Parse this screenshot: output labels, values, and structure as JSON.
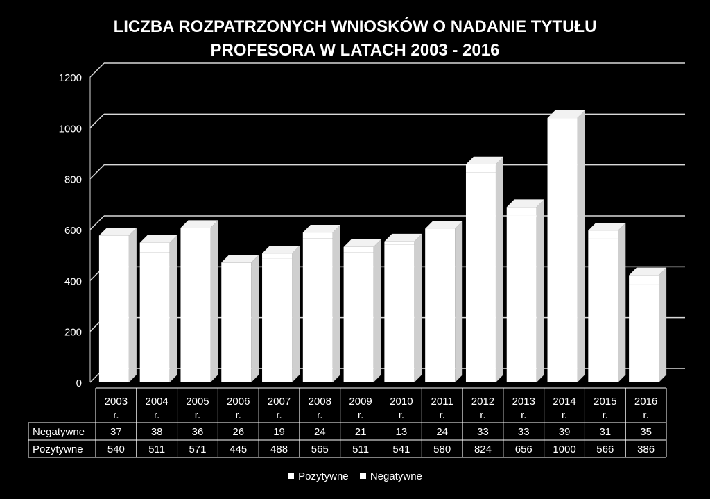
{
  "chart_data": {
    "type": "bar",
    "title_line1": "LICZBA ROZPATRZONYCH WNIOSKÓW O NADANIE TYTUŁU",
    "title_line2": "PROFESORA W LATACH 2003 - 2016",
    "categories": [
      "2003 r.",
      "2004 r.",
      "2005 r.",
      "2006 r.",
      "2007 r.",
      "2008 r.",
      "2009 r.",
      "2010 r.",
      "2011 r.",
      "2012 r.",
      "2013 r.",
      "2014 r.",
      "2015 r.",
      "2016 r."
    ],
    "category_lines": [
      [
        "2003",
        "r."
      ],
      [
        "2004",
        "r."
      ],
      [
        "2005",
        "r."
      ],
      [
        "2006",
        "r."
      ],
      [
        "2007",
        "r."
      ],
      [
        "2008",
        "r."
      ],
      [
        "2009",
        "r."
      ],
      [
        "2010",
        "r."
      ],
      [
        "2011",
        "r."
      ],
      [
        "2012",
        "r."
      ],
      [
        "2013",
        "r."
      ],
      [
        "2014",
        "r."
      ],
      [
        "2015",
        "r."
      ],
      [
        "2016",
        "r."
      ]
    ],
    "series": [
      {
        "name": "Negatywne",
        "values": [
          37,
          38,
          36,
          26,
          19,
          24,
          21,
          13,
          24,
          33,
          33,
          39,
          31,
          35
        ]
      },
      {
        "name": "Pozytywne",
        "values": [
          540,
          511,
          571,
          445,
          488,
          565,
          511,
          541,
          580,
          824,
          656,
          1000,
          566,
          386
        ]
      }
    ],
    "stacked": true,
    "ylim": [
      0,
      1200
    ],
    "yticks": [
      0,
      200,
      400,
      600,
      800,
      1000,
      1200
    ],
    "grid": true,
    "legend_position": "bottom",
    "bar_color": "#ffffff"
  },
  "legend": {
    "positive_label": "Pozytywne",
    "negative_label": "Negatywne"
  }
}
